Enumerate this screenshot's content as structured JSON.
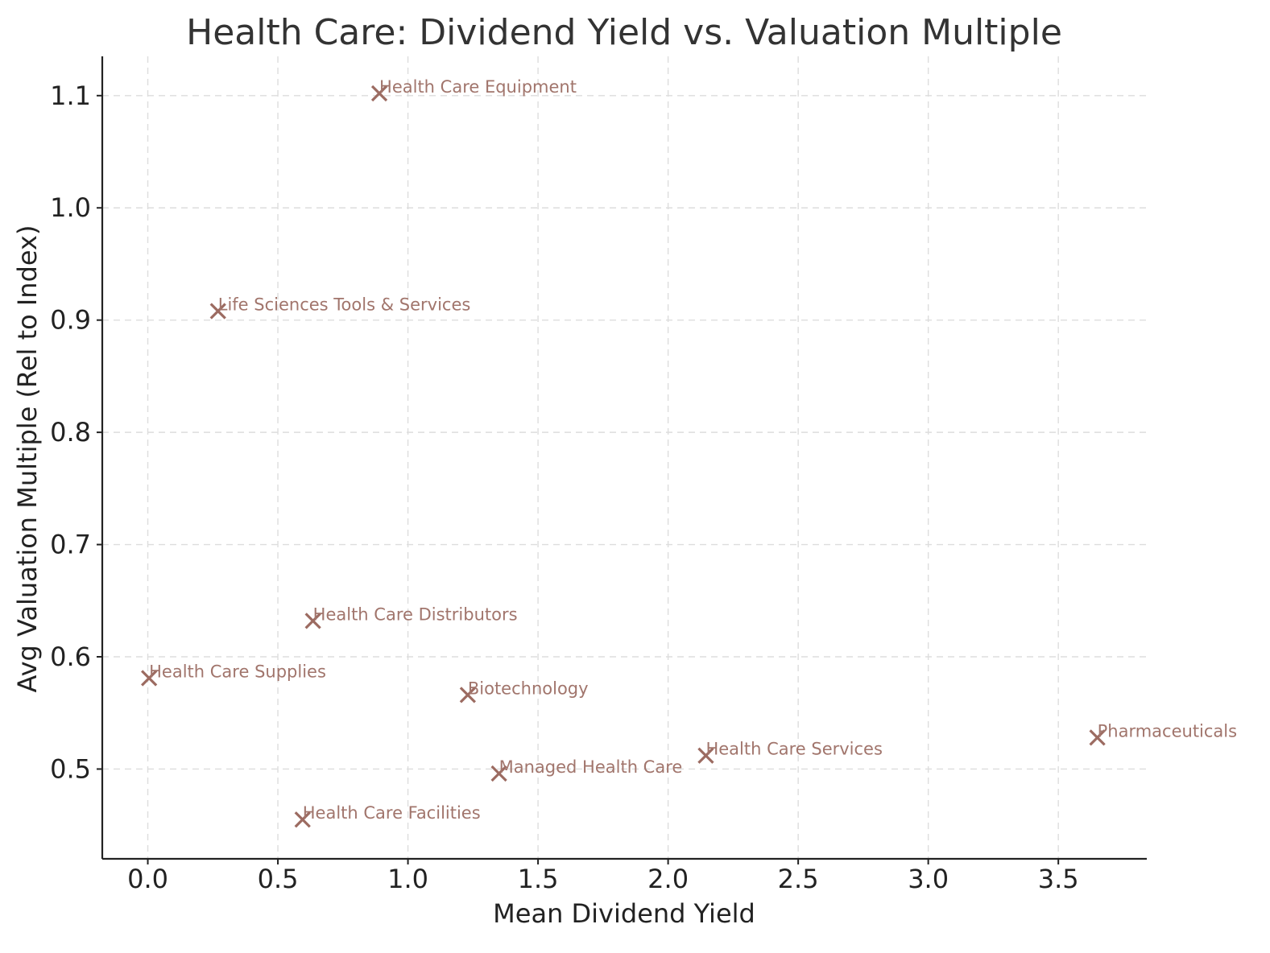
{
  "chart_data": {
    "type": "scatter",
    "title": "Health Care: Dividend Yield vs. Valuation Multiple",
    "xlabel": "Mean Dividend Yield",
    "ylabel": "Avg Valuation Multiple (Rel to Index)",
    "xlim": [
      -0.175,
      3.84
    ],
    "ylim": [
      0.42,
      1.135
    ],
    "xticks": [
      "0.0",
      "0.5",
      "1.0",
      "1.5",
      "2.0",
      "2.5",
      "3.0",
      "3.5"
    ],
    "xtick_values": [
      0.0,
      0.5,
      1.0,
      1.5,
      2.0,
      2.5,
      3.0,
      3.5
    ],
    "yticks": [
      "0.5",
      "0.6",
      "0.7",
      "0.8",
      "0.9",
      "1.0",
      "1.1"
    ],
    "ytick_values": [
      0.5,
      0.6,
      0.7,
      0.8,
      0.9,
      1.0,
      1.1
    ],
    "grid": true,
    "marker": "x",
    "marker_color": "#9c6b61",
    "label_color": "#a1756c",
    "points": [
      {
        "label": "Health Care Equipment",
        "x": 0.89,
        "y": 1.102
      },
      {
        "label": "Life Sciences Tools & Services",
        "x": 0.27,
        "y": 0.908
      },
      {
        "label": "Health Care Distributors",
        "x": 0.635,
        "y": 0.632
      },
      {
        "label": "Health Care Supplies",
        "x": 0.005,
        "y": 0.581
      },
      {
        "label": "Biotechnology",
        "x": 1.23,
        "y": 0.566
      },
      {
        "label": "Pharmaceuticals",
        "x": 3.65,
        "y": 0.528
      },
      {
        "label": "Health Care Services",
        "x": 2.145,
        "y": 0.512
      },
      {
        "label": "Managed Health Care",
        "x": 1.35,
        "y": 0.496
      },
      {
        "label": "Health Care Facilities",
        "x": 0.595,
        "y": 0.455
      }
    ]
  }
}
